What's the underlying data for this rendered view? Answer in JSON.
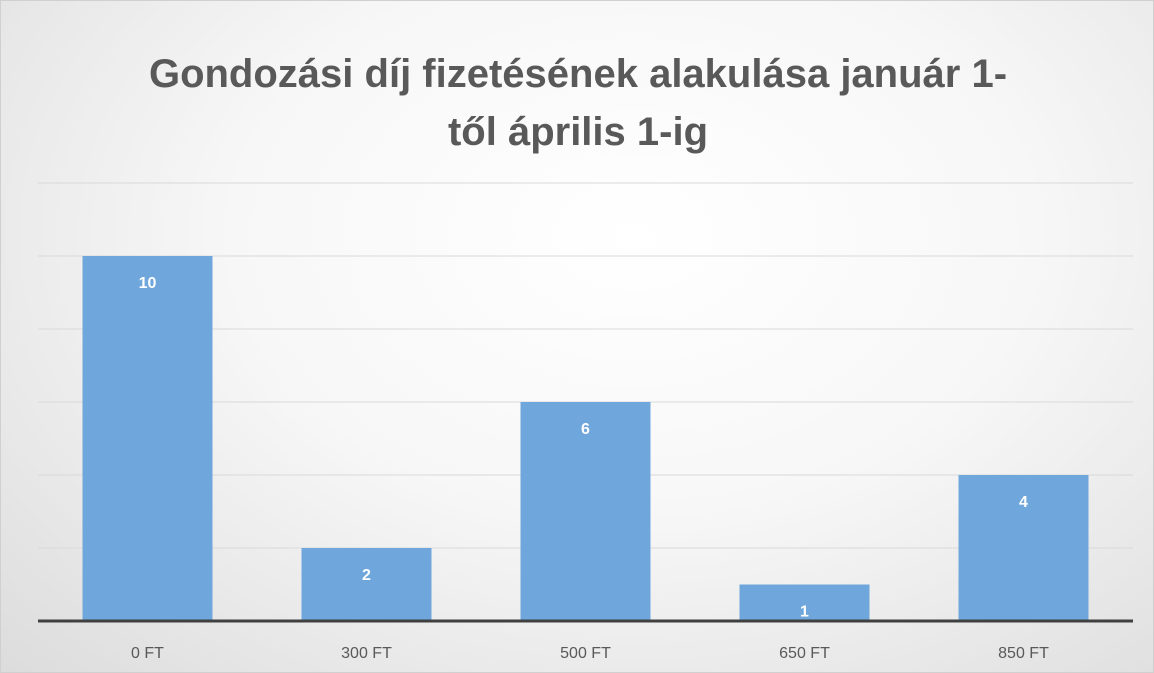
{
  "chart_data": {
    "type": "bar",
    "title": "Gondozási díj fizetésének alakulása január 1-től április 1-ig",
    "categories": [
      "0 FT",
      "300 FT",
      "500 FT",
      "650 FT",
      "850 FT"
    ],
    "values": [
      10,
      2,
      6,
      1,
      4
    ],
    "color": "#6fa6db",
    "ylim": [
      0,
      12
    ],
    "yticks": [
      0,
      2,
      4,
      6,
      8,
      10,
      12
    ],
    "grid": true
  }
}
